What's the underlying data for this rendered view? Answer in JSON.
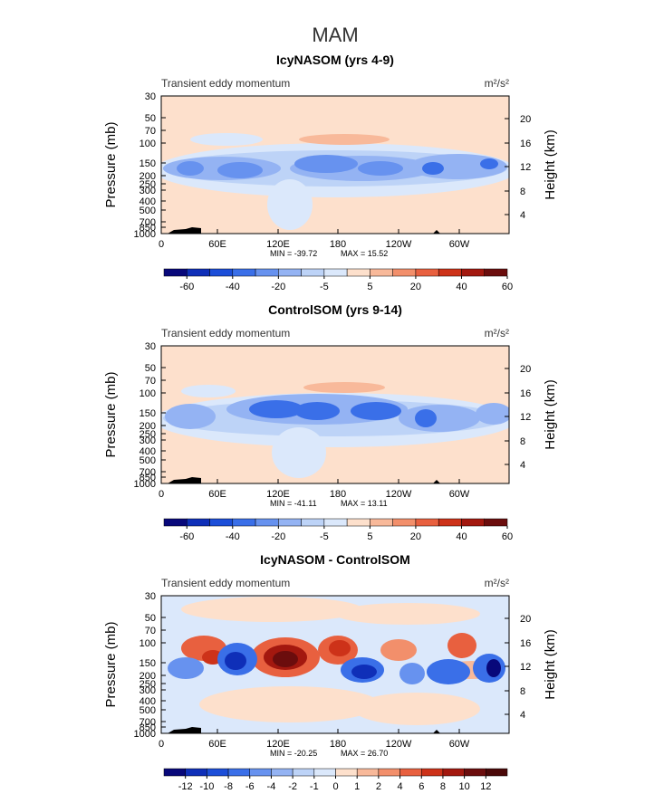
{
  "page_title": "MAM",
  "chart_data": [
    {
      "type": "heatmap",
      "title": "IcyNASOM (yrs 4-9)",
      "subtitle_left": "Transient eddy momentum",
      "units": "m²/s²",
      "y_left_label": "Pressure (mb)",
      "y_right_label": "Height (km)",
      "x_ticks": [
        "0",
        "60E",
        "120E",
        "180",
        "120W",
        "60W"
      ],
      "y_left_ticks": [
        "30",
        "50",
        "70",
        "100",
        "150",
        "200",
        "250",
        "300",
        "400",
        "500",
        "700",
        "850",
        "1000"
      ],
      "y_right_ticks": [
        "20",
        "16",
        "12",
        "8",
        "4"
      ],
      "min_label": "MIN = -39.72",
      "max_label": "MAX = 15.52",
      "colorbar_labels": [
        "-60",
        "-40",
        "-20",
        "-5",
        "5",
        "20",
        "40",
        "60"
      ],
      "colorbar_colors": [
        "#08087a",
        "#0f2fb8",
        "#1c4ed8",
        "#3a6fe8",
        "#6792ef",
        "#94b3f3",
        "#bdd3f7",
        "#dbe8fb",
        "#fde0cc",
        "#f8b99a",
        "#f28f6b",
        "#e8603f",
        "#cd3219",
        "#a3180f",
        "#6b0d0d"
      ],
      "value_range": [
        -39.72,
        15.52
      ]
    },
    {
      "type": "heatmap",
      "title": "ControlSOM (yrs 9-14)",
      "subtitle_left": "Transient eddy momentum",
      "units": "m²/s²",
      "y_left_label": "Pressure (mb)",
      "y_right_label": "Height (km)",
      "x_ticks": [
        "0",
        "60E",
        "120E",
        "180",
        "120W",
        "60W"
      ],
      "y_left_ticks": [
        "30",
        "50",
        "70",
        "100",
        "150",
        "200",
        "250",
        "300",
        "400",
        "500",
        "700",
        "850",
        "1000"
      ],
      "y_right_ticks": [
        "20",
        "16",
        "12",
        "8",
        "4"
      ],
      "min_label": "MIN = -41.11",
      "max_label": "MAX = 13.11",
      "colorbar_labels": [
        "-60",
        "-40",
        "-20",
        "-5",
        "5",
        "20",
        "40",
        "60"
      ],
      "colorbar_colors": [
        "#08087a",
        "#0f2fb8",
        "#1c4ed8",
        "#3a6fe8",
        "#6792ef",
        "#94b3f3",
        "#bdd3f7",
        "#dbe8fb",
        "#fde0cc",
        "#f8b99a",
        "#f28f6b",
        "#e8603f",
        "#cd3219",
        "#a3180f",
        "#6b0d0d"
      ],
      "value_range": [
        -41.11,
        13.11
      ]
    },
    {
      "type": "heatmap",
      "title": "IcyNASOM - ControlSOM",
      "subtitle_left": "Transient eddy momentum",
      "units": "m²/s²",
      "y_left_label": "Pressure (mb)",
      "y_right_label": "Height (km)",
      "x_ticks": [
        "0",
        "60E",
        "120E",
        "180",
        "120W",
        "60W"
      ],
      "y_left_ticks": [
        "30",
        "50",
        "70",
        "100",
        "150",
        "200",
        "250",
        "300",
        "400",
        "500",
        "700",
        "850",
        "1000"
      ],
      "y_right_ticks": [
        "20",
        "16",
        "12",
        "8",
        "4"
      ],
      "min_label": "MIN = -20.25",
      "max_label": "MAX = 26.70",
      "colorbar_labels": [
        "-12",
        "-10",
        "-8",
        "-6",
        "-4",
        "-2",
        "-1",
        "0",
        "1",
        "2",
        "4",
        "6",
        "8",
        "10",
        "12"
      ],
      "colorbar_colors": [
        "#08087a",
        "#0f2fb8",
        "#1c4ed8",
        "#3a6fe8",
        "#6792ef",
        "#94b3f3",
        "#bdd3f7",
        "#dbe8fb",
        "#fde0cc",
        "#f8b99a",
        "#f28f6b",
        "#e8603f",
        "#cd3219",
        "#a3180f",
        "#6b0d0d",
        "#4a0808"
      ],
      "value_range": [
        -20.25,
        26.7
      ]
    }
  ]
}
